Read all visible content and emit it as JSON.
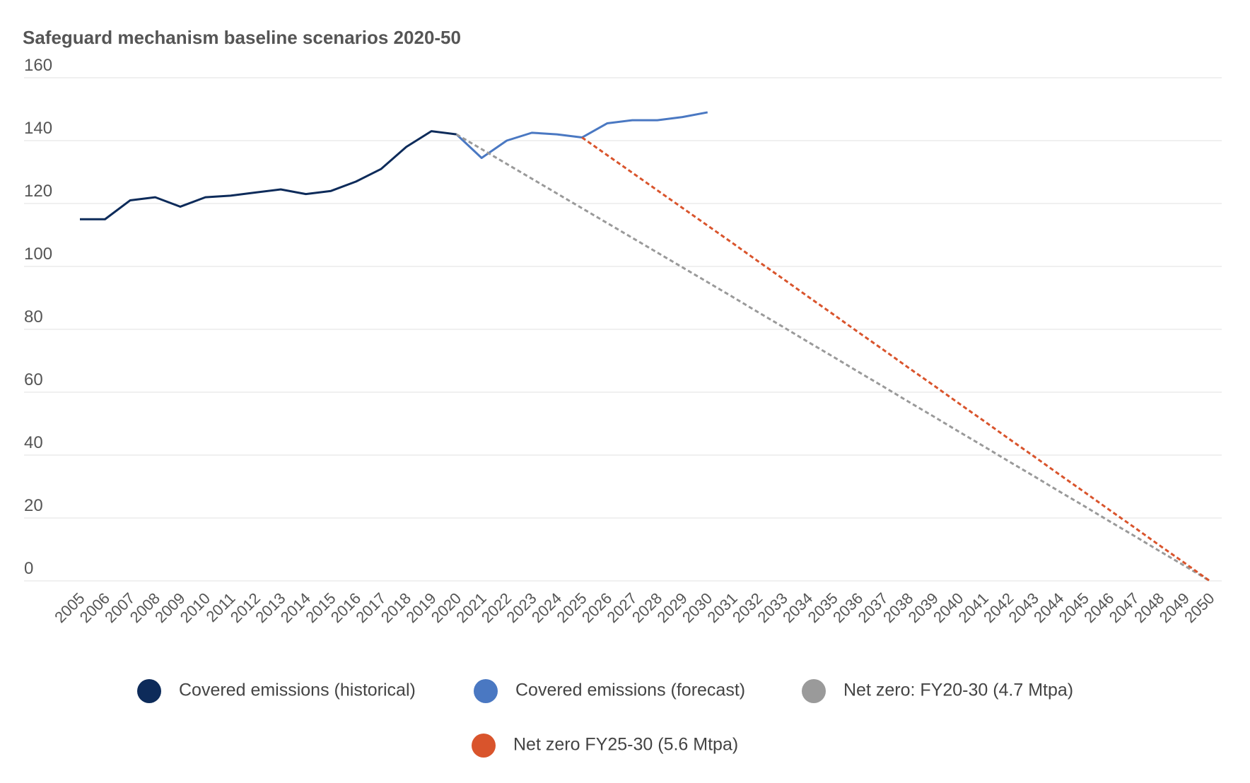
{
  "chart_data": {
    "type": "line",
    "title": "Safeguard mechanism baseline scenarios 2020-50",
    "categories": [
      "2005",
      "2006",
      "2007",
      "2008",
      "2009",
      "2010",
      "2011",
      "2012",
      "2013",
      "2014",
      "2015",
      "2016",
      "2017",
      "2018",
      "2019",
      "2020",
      "2021",
      "2022",
      "2023",
      "2024",
      "2025",
      "2026",
      "2027",
      "2028",
      "2029",
      "2030",
      "2031",
      "2032",
      "2033",
      "2034",
      "2035",
      "2036",
      "2037",
      "2038",
      "2039",
      "2040",
      "2041",
      "2042",
      "2043",
      "2044",
      "2045",
      "2046",
      "2047",
      "2048",
      "2049",
      "2050"
    ],
    "series": [
      {
        "name": "Covered emissions (historical)",
        "color": "#0d2b5a",
        "dashed": false,
        "values": [
          115,
          115,
          121,
          122,
          119,
          122,
          122.5,
          123.5,
          124.5,
          123,
          124,
          127,
          131,
          138,
          143,
          142,
          null,
          null,
          null,
          null,
          null,
          null,
          null,
          null,
          null,
          null,
          null,
          null,
          null,
          null,
          null,
          null,
          null,
          null,
          null,
          null,
          null,
          null,
          null,
          null,
          null,
          null,
          null,
          null,
          null,
          null
        ]
      },
      {
        "name": "Covered emissions (forecast)",
        "color": "#4a78c2",
        "dashed": false,
        "values": [
          null,
          null,
          null,
          null,
          null,
          null,
          null,
          null,
          null,
          null,
          null,
          null,
          null,
          null,
          null,
          142,
          134.5,
          140,
          142.5,
          142,
          141,
          145.5,
          146.5,
          146.5,
          147.5,
          149,
          null,
          null,
          null,
          null,
          null,
          null,
          null,
          null,
          null,
          null,
          null,
          null,
          null,
          null,
          null,
          null,
          null,
          null,
          null,
          null
        ]
      },
      {
        "name": "Net zero: FY20-30 (4.7 Mtpa)",
        "color": "#9a9a9a",
        "dashed": true,
        "values": [
          null,
          null,
          null,
          null,
          null,
          null,
          null,
          null,
          null,
          null,
          null,
          null,
          null,
          null,
          null,
          142,
          137.3,
          132.6,
          127.9,
          123.2,
          118.5,
          113.8,
          109.1,
          104.4,
          99.7,
          95,
          90.3,
          85.5,
          80.8,
          76,
          71.3,
          66.5,
          61.8,
          57,
          52.3,
          47.5,
          42.8,
          38,
          33.3,
          28.5,
          23.8,
          19,
          14.3,
          9.5,
          4.8,
          0
        ]
      },
      {
        "name": "Net zero FY25-30 (5.6 Mtpa)",
        "color": "#d9542c",
        "dashed": true,
        "values": [
          null,
          null,
          null,
          null,
          null,
          null,
          null,
          null,
          null,
          null,
          null,
          null,
          null,
          null,
          null,
          null,
          null,
          null,
          null,
          null,
          141,
          135.4,
          129.8,
          124.2,
          118.6,
          113,
          107.4,
          101.7,
          96.1,
          90.4,
          84.8,
          79.1,
          73.5,
          67.8,
          62.2,
          56.5,
          50.9,
          45.2,
          39.6,
          33.9,
          28.3,
          22.6,
          17,
          11.3,
          5.7,
          0
        ]
      }
    ],
    "ylim": [
      0,
      160
    ],
    "yticks": [
      0,
      20,
      40,
      60,
      80,
      100,
      120,
      140,
      160
    ],
    "grid": true
  }
}
